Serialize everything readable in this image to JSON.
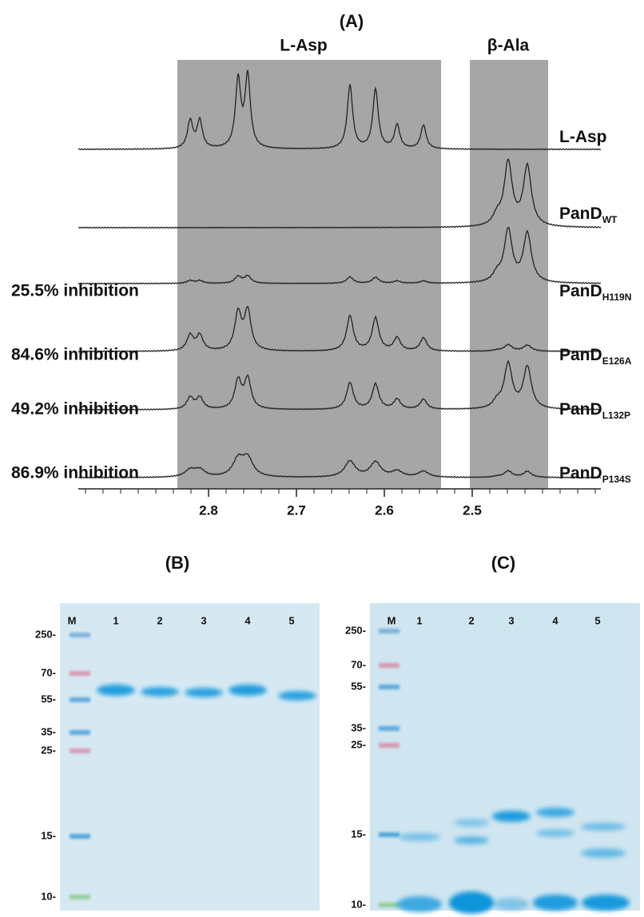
{
  "panel_a": {
    "title": "(A)",
    "region_labels": [
      "L-Asp",
      "β-Ala"
    ],
    "traces": [
      {
        "label": "L-Asp"
      },
      {
        "label": "PanD",
        "subscript": "WT"
      },
      {
        "label": "PanD",
        "subscript": "H119N",
        "inhibition": "25.5% inhibition"
      },
      {
        "label": "PanD",
        "subscript": "E126A",
        "inhibition": "84.6% inhibition"
      },
      {
        "label": "PanD",
        "subscript": "L132P",
        "inhibition": "49.2% inhibition"
      },
      {
        "label": "PanD",
        "subscript": "P134S",
        "inhibition": "86.9% inhibition"
      }
    ],
    "x_ticks": [
      "2.8",
      "2.7",
      "2.6",
      "2.5"
    ]
  },
  "panel_b": {
    "title": "(B)",
    "lanes": [
      "M",
      "1",
      "2",
      "3",
      "4",
      "5"
    ],
    "markers": [
      "250-",
      "70-",
      "55-",
      "35-",
      "25-",
      "15-",
      "10-"
    ]
  },
  "panel_c": {
    "title": "(C)",
    "lanes": [
      "M",
      "1",
      "2",
      "3",
      "4",
      "5"
    ],
    "markers": [
      "250-",
      "70-",
      "55-",
      "35-",
      "25-",
      "15-",
      "10-"
    ]
  }
}
